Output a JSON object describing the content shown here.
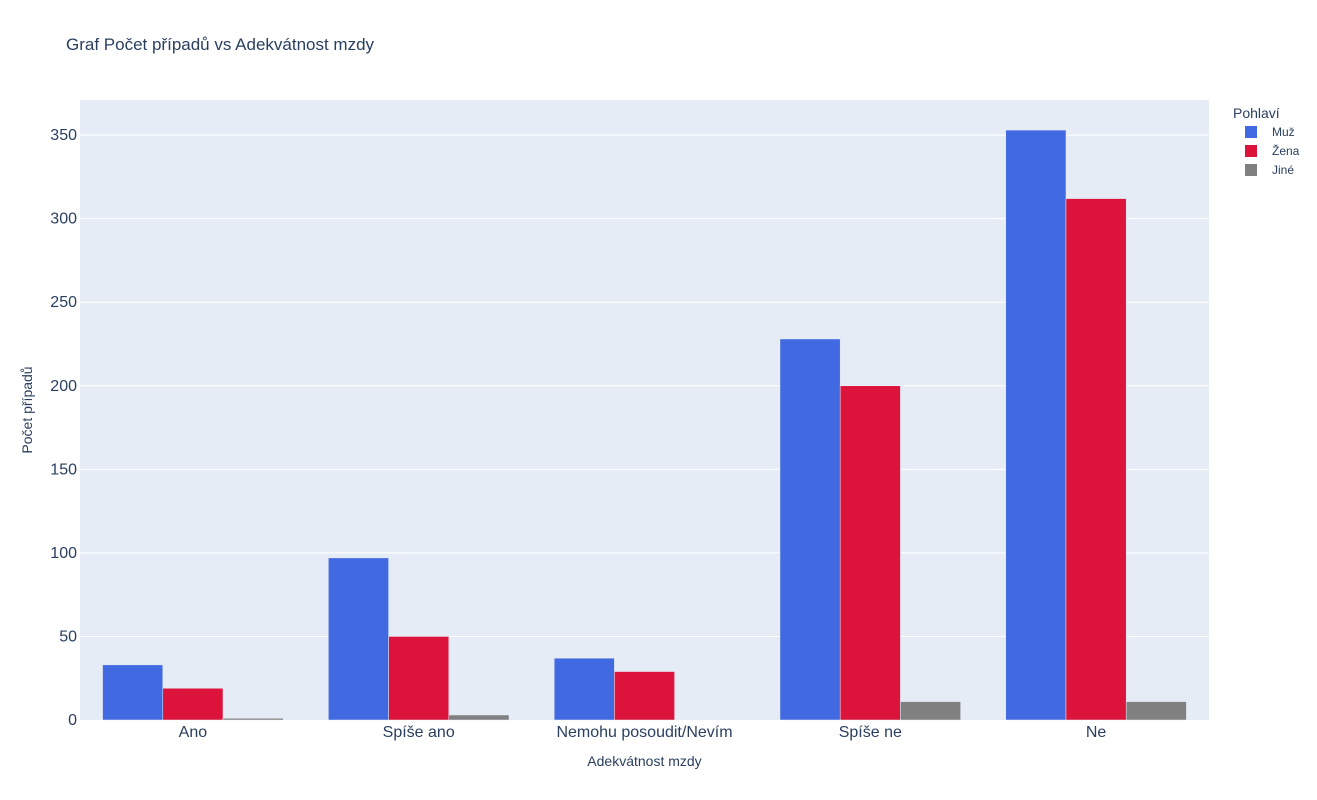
{
  "chart_data": {
    "type": "bar",
    "title": "Graf Počet případů vs Adekvátnost mzdy",
    "xlabel": "Adekvátnost mzdy",
    "ylabel": "Počet případů",
    "categories": [
      "Ano",
      "Spíše ano",
      "Nemohu posoudit/Nevím",
      "Spíše ne",
      "Ne"
    ],
    "ylim": [
      0,
      371
    ],
    "yticks": [
      0,
      50,
      100,
      150,
      200,
      250,
      300,
      350
    ],
    "grid": true,
    "legend": {
      "title": "Pohlaví",
      "position": "top-right"
    },
    "series": [
      {
        "name": "Muž",
        "color": "#4169e1",
        "values": [
          33,
          97,
          37,
          228,
          353
        ]
      },
      {
        "name": "Žena",
        "color": "#dc143c",
        "values": [
          19,
          50,
          29,
          200,
          312
        ]
      },
      {
        "name": "Jiné",
        "color": "#808080",
        "values": [
          1,
          3,
          0,
          11,
          11
        ]
      }
    ],
    "plot_background": "#e5ecf6"
  }
}
